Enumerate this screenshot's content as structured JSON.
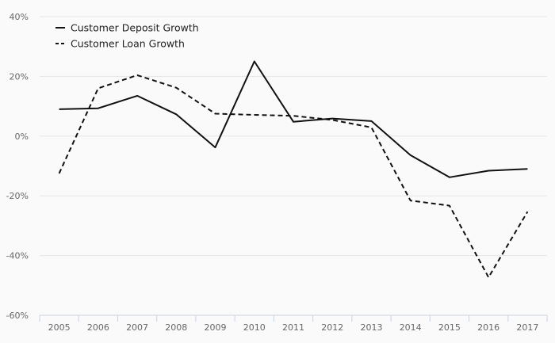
{
  "chart_data": {
    "type": "line",
    "title": "",
    "xlabel": "",
    "ylabel": "",
    "categories": [
      "2005",
      "2006",
      "2007",
      "2008",
      "2009",
      "2010",
      "2011",
      "2012",
      "2013",
      "2014",
      "2015",
      "2016",
      "2017"
    ],
    "ylim": [
      -60,
      40
    ],
    "yticks": [
      40,
      20,
      0,
      -20,
      -40,
      -60
    ],
    "ytick_labels": [
      "40%",
      "20%",
      "0%",
      "-20%",
      "-40%",
      "-60%"
    ],
    "grid": true,
    "legend_position": "top-left",
    "series": [
      {
        "name": "Customer Deposit Growth",
        "style": "solid",
        "color": "#111111",
        "values": [
          9,
          9.3,
          13.5,
          7.3,
          -3.8,
          25,
          4.8,
          5.9,
          5,
          -6.4,
          -13.8,
          -11.6,
          -11
        ]
      },
      {
        "name": "Customer Loan Growth",
        "style": "dashed",
        "color": "#111111",
        "values": [
          -12.5,
          16,
          20.4,
          16.2,
          7.5,
          7.1,
          6.8,
          5.4,
          2.9,
          -21.6,
          -23.3,
          -47.3,
          -25.3
        ]
      }
    ]
  }
}
